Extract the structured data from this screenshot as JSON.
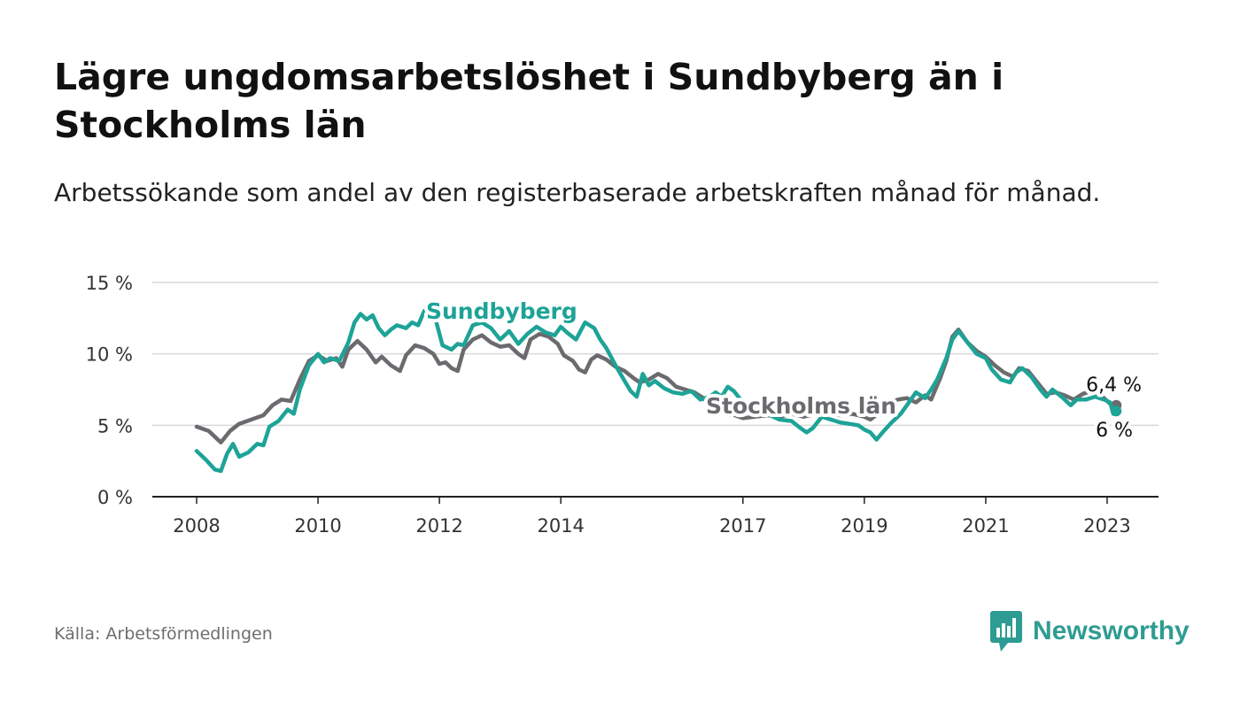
{
  "title": "Lägre ungdomsarbetslöshet i Sundbyberg än i Stockholms län",
  "subtitle": "Arbetssökande som andel av den registerbaserade arbetskraften månad för månad.",
  "source": "Källa: Arbetsförmedlingen",
  "brand": {
    "name": "Newsworthy",
    "icon": "bar-chart-speech-bubble-icon",
    "color": "#2e9c92"
  },
  "chart_data": {
    "type": "line",
    "ylim": [
      0,
      15
    ],
    "xlim": [
      2008,
      2023.2
    ],
    "yticks": [
      {
        "value": 0,
        "label": "0 %"
      },
      {
        "value": 5,
        "label": "5 %"
      },
      {
        "value": 10,
        "label": "10 %"
      },
      {
        "value": 15,
        "label": "15 %"
      }
    ],
    "xticks": [
      {
        "value": 2008,
        "label": "2008"
      },
      {
        "value": 2010,
        "label": "2010"
      },
      {
        "value": 2012,
        "label": "2012"
      },
      {
        "value": 2014,
        "label": "2014"
      },
      {
        "value": 2017,
        "label": "2017"
      },
      {
        "value": 2019,
        "label": "2019"
      },
      {
        "value": 2021,
        "label": "2021"
      },
      {
        "value": 2023,
        "label": "2023"
      }
    ],
    "series": [
      {
        "name": "Stockholms län",
        "color": "#6b6b6f",
        "label": "Stockholms län",
        "end_label": "6,4 %",
        "points": [
          [
            2008.0,
            4.9
          ],
          [
            2008.2,
            4.6
          ],
          [
            2008.4,
            3.8
          ],
          [
            2008.55,
            4.6
          ],
          [
            2008.7,
            5.1
          ],
          [
            2008.9,
            5.4
          ],
          [
            2009.1,
            5.7
          ],
          [
            2009.25,
            6.4
          ],
          [
            2009.4,
            6.8
          ],
          [
            2009.55,
            6.7
          ],
          [
            2009.7,
            8.2
          ],
          [
            2009.85,
            9.5
          ],
          [
            2010.0,
            9.9
          ],
          [
            2010.15,
            9.5
          ],
          [
            2010.3,
            9.7
          ],
          [
            2010.4,
            9.1
          ],
          [
            2010.5,
            10.3
          ],
          [
            2010.65,
            10.9
          ],
          [
            2010.8,
            10.3
          ],
          [
            2010.95,
            9.4
          ],
          [
            2011.05,
            9.8
          ],
          [
            2011.2,
            9.2
          ],
          [
            2011.35,
            8.8
          ],
          [
            2011.45,
            9.9
          ],
          [
            2011.6,
            10.6
          ],
          [
            2011.75,
            10.4
          ],
          [
            2011.9,
            10.0
          ],
          [
            2012.0,
            9.3
          ],
          [
            2012.1,
            9.4
          ],
          [
            2012.2,
            9.0
          ],
          [
            2012.3,
            8.8
          ],
          [
            2012.4,
            10.3
          ],
          [
            2012.55,
            11.0
          ],
          [
            2012.7,
            11.3
          ],
          [
            2012.85,
            10.8
          ],
          [
            2013.0,
            10.5
          ],
          [
            2013.15,
            10.6
          ],
          [
            2013.3,
            10.0
          ],
          [
            2013.4,
            9.7
          ],
          [
            2013.5,
            11.0
          ],
          [
            2013.65,
            11.4
          ],
          [
            2013.8,
            11.2
          ],
          [
            2013.95,
            10.7
          ],
          [
            2014.05,
            9.9
          ],
          [
            2014.2,
            9.5
          ],
          [
            2014.3,
            8.9
          ],
          [
            2014.4,
            8.7
          ],
          [
            2014.5,
            9.6
          ],
          [
            2014.6,
            9.9
          ],
          [
            2014.75,
            9.6
          ],
          [
            2014.9,
            9.1
          ],
          [
            2015.05,
            8.8
          ],
          [
            2015.2,
            8.3
          ],
          [
            2015.3,
            8.0
          ],
          [
            2015.45,
            8.2
          ],
          [
            2015.6,
            8.6
          ],
          [
            2015.75,
            8.3
          ],
          [
            2015.9,
            7.7
          ],
          [
            2016.05,
            7.5
          ],
          [
            2016.2,
            7.3
          ],
          [
            2016.35,
            6.9
          ],
          [
            2016.5,
            6.3
          ],
          [
            2016.65,
            6.0
          ],
          [
            2016.8,
            5.8
          ],
          [
            2017.0,
            5.5
          ],
          [
            2017.2,
            5.6
          ],
          [
            2017.4,
            5.7
          ],
          [
            2017.6,
            5.6
          ],
          [
            2017.8,
            5.8
          ],
          [
            2018.0,
            5.6
          ],
          [
            2018.2,
            5.8
          ],
          [
            2018.4,
            5.9
          ],
          [
            2018.6,
            5.7
          ],
          [
            2018.8,
            5.8
          ],
          [
            2019.0,
            5.6
          ],
          [
            2019.1,
            5.4
          ],
          [
            2019.25,
            5.9
          ],
          [
            2019.4,
            6.5
          ],
          [
            2019.55,
            6.8
          ],
          [
            2019.7,
            6.9
          ],
          [
            2019.85,
            6.6
          ],
          [
            2020.0,
            7.1
          ],
          [
            2020.1,
            6.8
          ],
          [
            2020.25,
            8.3
          ],
          [
            2020.35,
            9.5
          ],
          [
            2020.45,
            11.2
          ],
          [
            2020.55,
            11.7
          ],
          [
            2020.7,
            10.8
          ],
          [
            2020.85,
            10.2
          ],
          [
            2021.0,
            9.8
          ],
          [
            2021.15,
            9.2
          ],
          [
            2021.3,
            8.7
          ],
          [
            2021.45,
            8.4
          ],
          [
            2021.55,
            9.0
          ],
          [
            2021.7,
            8.8
          ],
          [
            2021.85,
            8.0
          ],
          [
            2022.0,
            7.2
          ],
          [
            2022.15,
            7.3
          ],
          [
            2022.3,
            7.1
          ],
          [
            2022.45,
            6.8
          ],
          [
            2022.6,
            7.2
          ],
          [
            2022.75,
            7.4
          ],
          [
            2022.9,
            7.1
          ],
          [
            2023.05,
            6.5
          ],
          [
            2023.15,
            6.4
          ]
        ]
      },
      {
        "name": "Sundbyberg",
        "color": "#1ea397",
        "label": "Sundbyberg",
        "end_label": "6 %",
        "points": [
          [
            2008.0,
            3.2
          ],
          [
            2008.15,
            2.6
          ],
          [
            2008.3,
            1.9
          ],
          [
            2008.4,
            1.8
          ],
          [
            2008.5,
            3.0
          ],
          [
            2008.6,
            3.7
          ],
          [
            2008.7,
            2.8
          ],
          [
            2008.85,
            3.1
          ],
          [
            2009.0,
            3.7
          ],
          [
            2009.1,
            3.6
          ],
          [
            2009.2,
            4.9
          ],
          [
            2009.35,
            5.3
          ],
          [
            2009.5,
            6.1
          ],
          [
            2009.6,
            5.8
          ],
          [
            2009.7,
            7.5
          ],
          [
            2009.85,
            9.2
          ],
          [
            2010.0,
            10.0
          ],
          [
            2010.1,
            9.4
          ],
          [
            2010.2,
            9.7
          ],
          [
            2010.35,
            9.5
          ],
          [
            2010.5,
            10.8
          ],
          [
            2010.6,
            12.2
          ],
          [
            2010.7,
            12.8
          ],
          [
            2010.8,
            12.4
          ],
          [
            2010.9,
            12.7
          ],
          [
            2011.0,
            11.8
          ],
          [
            2011.1,
            11.3
          ],
          [
            2011.2,
            11.7
          ],
          [
            2011.3,
            12.0
          ],
          [
            2011.45,
            11.8
          ],
          [
            2011.55,
            12.2
          ],
          [
            2011.65,
            12.0
          ],
          [
            2011.75,
            13.0
          ],
          [
            2011.85,
            13.2
          ],
          [
            2011.95,
            12.2
          ],
          [
            2012.05,
            10.6
          ],
          [
            2012.2,
            10.3
          ],
          [
            2012.3,
            10.7
          ],
          [
            2012.4,
            10.6
          ],
          [
            2012.55,
            12.0
          ],
          [
            2012.7,
            12.2
          ],
          [
            2012.85,
            11.8
          ],
          [
            2013.0,
            11.0
          ],
          [
            2013.15,
            11.6
          ],
          [
            2013.3,
            10.7
          ],
          [
            2013.45,
            11.4
          ],
          [
            2013.6,
            11.9
          ],
          [
            2013.75,
            11.5
          ],
          [
            2013.9,
            11.3
          ],
          [
            2014.0,
            11.9
          ],
          [
            2014.1,
            11.5
          ],
          [
            2014.25,
            11.0
          ],
          [
            2014.4,
            12.2
          ],
          [
            2014.55,
            11.8
          ],
          [
            2014.65,
            11.0
          ],
          [
            2014.75,
            10.4
          ],
          [
            2014.9,
            9.2
          ],
          [
            2015.05,
            8.1
          ],
          [
            2015.15,
            7.4
          ],
          [
            2015.25,
            7.0
          ],
          [
            2015.35,
            8.6
          ],
          [
            2015.45,
            7.8
          ],
          [
            2015.55,
            8.1
          ],
          [
            2015.7,
            7.6
          ],
          [
            2015.85,
            7.3
          ],
          [
            2016.0,
            7.2
          ],
          [
            2016.15,
            7.4
          ],
          [
            2016.3,
            6.8
          ],
          [
            2016.45,
            7.0
          ],
          [
            2016.55,
            7.3
          ],
          [
            2016.65,
            7.0
          ],
          [
            2016.75,
            7.7
          ],
          [
            2016.85,
            7.4
          ],
          [
            2017.0,
            6.6
          ],
          [
            2017.2,
            6.2
          ],
          [
            2017.4,
            5.8
          ],
          [
            2017.6,
            5.4
          ],
          [
            2017.8,
            5.3
          ],
          [
            2017.95,
            4.8
          ],
          [
            2018.05,
            4.5
          ],
          [
            2018.15,
            4.8
          ],
          [
            2018.3,
            5.6
          ],
          [
            2018.45,
            5.4
          ],
          [
            2018.6,
            5.2
          ],
          [
            2018.75,
            5.1
          ],
          [
            2018.9,
            5.0
          ],
          [
            2019.0,
            4.7
          ],
          [
            2019.1,
            4.5
          ],
          [
            2019.2,
            4.0
          ],
          [
            2019.3,
            4.5
          ],
          [
            2019.45,
            5.2
          ],
          [
            2019.6,
            5.8
          ],
          [
            2019.75,
            6.7
          ],
          [
            2019.85,
            7.3
          ],
          [
            2020.0,
            6.9
          ],
          [
            2020.1,
            7.5
          ],
          [
            2020.2,
            8.2
          ],
          [
            2020.35,
            9.7
          ],
          [
            2020.45,
            11.0
          ],
          [
            2020.55,
            11.6
          ],
          [
            2020.7,
            10.8
          ],
          [
            2020.85,
            10.0
          ],
          [
            2021.0,
            9.7
          ],
          [
            2021.1,
            8.9
          ],
          [
            2021.25,
            8.2
          ],
          [
            2021.4,
            8.0
          ],
          [
            2021.5,
            8.7
          ],
          [
            2021.6,
            9.0
          ],
          [
            2021.75,
            8.4
          ],
          [
            2021.9,
            7.5
          ],
          [
            2022.0,
            7.0
          ],
          [
            2022.1,
            7.5
          ],
          [
            2022.25,
            7.0
          ],
          [
            2022.4,
            6.4
          ],
          [
            2022.5,
            6.8
          ],
          [
            2022.65,
            6.8
          ],
          [
            2022.8,
            7.0
          ],
          [
            2022.95,
            6.8
          ],
          [
            2023.05,
            6.6
          ],
          [
            2023.1,
            5.8
          ],
          [
            2023.15,
            6.0
          ]
        ]
      }
    ]
  }
}
